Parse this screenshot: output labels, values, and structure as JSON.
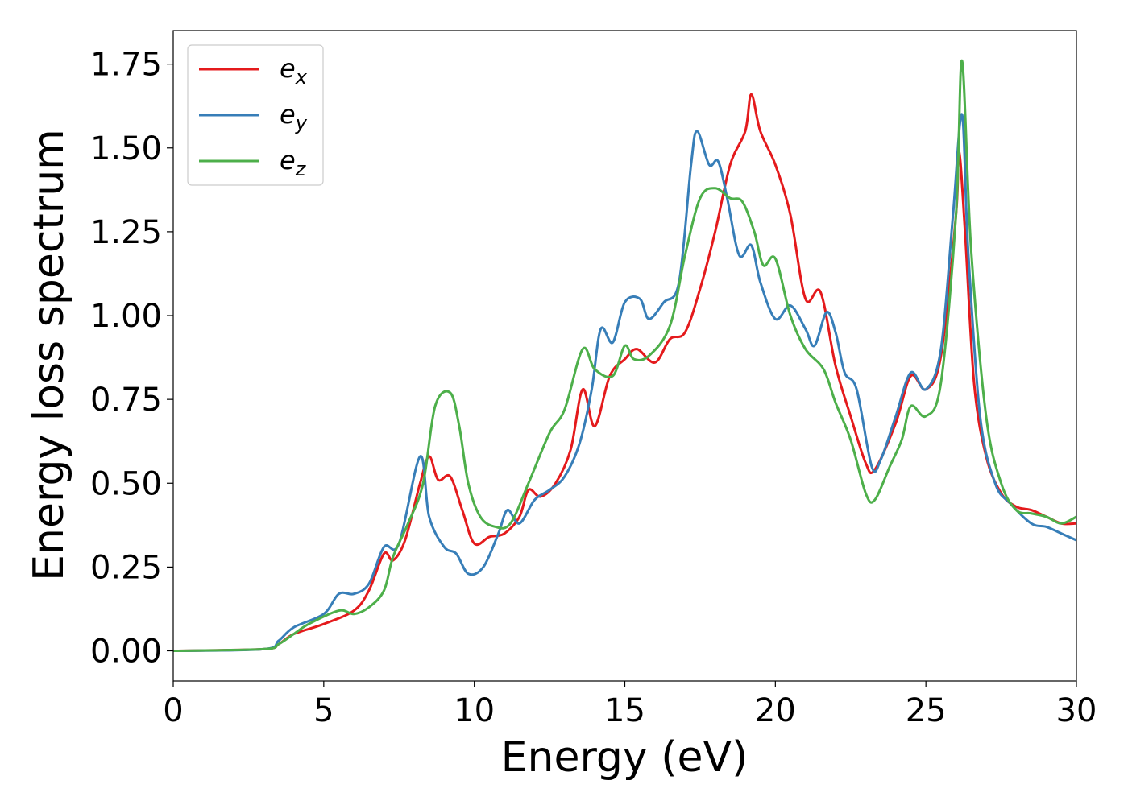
{
  "chart_data": {
    "type": "line",
    "title": "",
    "xlabel": "Energy (eV)",
    "ylabel": "Energy loss spectrum",
    "xlim": [
      0,
      30
    ],
    "ylim": [
      -0.09,
      1.85
    ],
    "xticks": [
      0,
      5,
      10,
      15,
      20,
      25,
      30
    ],
    "xtick_labels": [
      "0",
      "5",
      "10",
      "15",
      "20",
      "25",
      "30"
    ],
    "yticks": [
      0.0,
      0.25,
      0.5,
      0.75,
      1.0,
      1.25,
      1.5,
      1.75
    ],
    "ytick_labels": [
      "0.00",
      "0.25",
      "0.50",
      "0.75",
      "1.00",
      "1.25",
      "1.50",
      "1.75"
    ],
    "grid": false,
    "legend_position": "top-left",
    "series": [
      {
        "name": "e",
        "subscript": "x",
        "color": "#e41a1c",
        "points": [
          [
            0,
            0
          ],
          [
            3,
            0.005
          ],
          [
            3.5,
            0.02
          ],
          [
            4,
            0.05
          ],
          [
            5,
            0.08
          ],
          [
            6,
            0.12
          ],
          [
            6.5,
            0.18
          ],
          [
            7,
            0.29
          ],
          [
            7.3,
            0.27
          ],
          [
            7.7,
            0.33
          ],
          [
            8.2,
            0.5
          ],
          [
            8.5,
            0.58
          ],
          [
            8.8,
            0.51
          ],
          [
            9.2,
            0.52
          ],
          [
            9.6,
            0.42
          ],
          [
            10,
            0.32
          ],
          [
            10.5,
            0.34
          ],
          [
            11,
            0.35
          ],
          [
            11.5,
            0.4
          ],
          [
            11.8,
            0.48
          ],
          [
            12.2,
            0.46
          ],
          [
            12.7,
            0.5
          ],
          [
            13.2,
            0.6
          ],
          [
            13.6,
            0.78
          ],
          [
            14,
            0.67
          ],
          [
            14.5,
            0.82
          ],
          [
            15,
            0.87
          ],
          [
            15.4,
            0.9
          ],
          [
            16,
            0.86
          ],
          [
            16.5,
            0.93
          ],
          [
            17,
            0.95
          ],
          [
            17.5,
            1.08
          ],
          [
            18,
            1.25
          ],
          [
            18.5,
            1.45
          ],
          [
            19,
            1.55
          ],
          [
            19.2,
            1.66
          ],
          [
            19.5,
            1.55
          ],
          [
            20,
            1.45
          ],
          [
            20.5,
            1.3
          ],
          [
            21,
            1.05
          ],
          [
            21.5,
            1.07
          ],
          [
            22,
            0.85
          ],
          [
            22.5,
            0.7
          ],
          [
            23,
            0.56
          ],
          [
            23.3,
            0.54
          ],
          [
            24,
            0.68
          ],
          [
            24.5,
            0.82
          ],
          [
            25,
            0.78
          ],
          [
            25.5,
            0.88
          ],
          [
            26,
            1.3
          ],
          [
            26.1,
            1.49
          ],
          [
            26.3,
            1.25
          ],
          [
            26.6,
            0.8
          ],
          [
            27,
            0.58
          ],
          [
            27.5,
            0.47
          ],
          [
            28,
            0.43
          ],
          [
            28.5,
            0.42
          ],
          [
            29,
            0.4
          ],
          [
            29.5,
            0.38
          ],
          [
            30,
            0.38
          ]
        ]
      },
      {
        "name": "e",
        "subscript": "y",
        "color": "#377eb8",
        "points": [
          [
            0,
            0
          ],
          [
            3,
            0.005
          ],
          [
            3.5,
            0.03
          ],
          [
            4,
            0.07
          ],
          [
            5,
            0.11
          ],
          [
            5.5,
            0.17
          ],
          [
            6,
            0.17
          ],
          [
            6.5,
            0.2
          ],
          [
            7,
            0.31
          ],
          [
            7.5,
            0.32
          ],
          [
            8.2,
            0.58
          ],
          [
            8.5,
            0.4
          ],
          [
            9,
            0.31
          ],
          [
            9.4,
            0.29
          ],
          [
            9.8,
            0.23
          ],
          [
            10.3,
            0.25
          ],
          [
            10.8,
            0.35
          ],
          [
            11.1,
            0.42
          ],
          [
            11.5,
            0.38
          ],
          [
            12,
            0.45
          ],
          [
            12.5,
            0.48
          ],
          [
            13,
            0.52
          ],
          [
            13.5,
            0.62
          ],
          [
            13.9,
            0.78
          ],
          [
            14.2,
            0.96
          ],
          [
            14.6,
            0.92
          ],
          [
            15,
            1.04
          ],
          [
            15.5,
            1.05
          ],
          [
            15.8,
            0.99
          ],
          [
            16.3,
            1.04
          ],
          [
            16.8,
            1.1
          ],
          [
            17.2,
            1.45
          ],
          [
            17.4,
            1.55
          ],
          [
            17.8,
            1.45
          ],
          [
            18.1,
            1.46
          ],
          [
            18.4,
            1.35
          ],
          [
            18.8,
            1.18
          ],
          [
            19.2,
            1.21
          ],
          [
            19.5,
            1.1
          ],
          [
            20,
            0.99
          ],
          [
            20.5,
            1.03
          ],
          [
            21,
            0.96
          ],
          [
            21.3,
            0.91
          ],
          [
            21.7,
            1.01
          ],
          [
            22,
            0.95
          ],
          [
            22.3,
            0.83
          ],
          [
            22.7,
            0.78
          ],
          [
            23.2,
            0.55
          ],
          [
            23.5,
            0.57
          ],
          [
            24,
            0.7
          ],
          [
            24.5,
            0.83
          ],
          [
            25,
            0.78
          ],
          [
            25.5,
            0.9
          ],
          [
            25.9,
            1.3
          ],
          [
            26.2,
            1.6
          ],
          [
            26.4,
            1.2
          ],
          [
            26.8,
            0.7
          ],
          [
            27.3,
            0.5
          ],
          [
            27.8,
            0.44
          ],
          [
            28.5,
            0.38
          ],
          [
            29,
            0.37
          ],
          [
            29.5,
            0.35
          ],
          [
            30,
            0.33
          ]
        ]
      },
      {
        "name": "e",
        "subscript": "z",
        "color": "#4daf4a",
        "points": [
          [
            0,
            0
          ],
          [
            3,
            0.005
          ],
          [
            3.5,
            0.02
          ],
          [
            4,
            0.05
          ],
          [
            4.5,
            0.08
          ],
          [
            5.5,
            0.12
          ],
          [
            6,
            0.11
          ],
          [
            6.5,
            0.13
          ],
          [
            7,
            0.18
          ],
          [
            7.3,
            0.28
          ],
          [
            7.8,
            0.38
          ],
          [
            8.3,
            0.5
          ],
          [
            8.7,
            0.73
          ],
          [
            9.2,
            0.77
          ],
          [
            9.5,
            0.67
          ],
          [
            9.8,
            0.5
          ],
          [
            10.2,
            0.4
          ],
          [
            10.7,
            0.37
          ],
          [
            11.2,
            0.38
          ],
          [
            11.8,
            0.5
          ],
          [
            12.5,
            0.65
          ],
          [
            13,
            0.72
          ],
          [
            13.6,
            0.9
          ],
          [
            14,
            0.84
          ],
          [
            14.6,
            0.82
          ],
          [
            15,
            0.91
          ],
          [
            15.3,
            0.87
          ],
          [
            15.8,
            0.88
          ],
          [
            16.5,
            0.97
          ],
          [
            17,
            1.18
          ],
          [
            17.5,
            1.35
          ],
          [
            18,
            1.38
          ],
          [
            18.5,
            1.35
          ],
          [
            18.9,
            1.34
          ],
          [
            19.3,
            1.25
          ],
          [
            19.6,
            1.15
          ],
          [
            20,
            1.17
          ],
          [
            20.5,
            1.0
          ],
          [
            21,
            0.9
          ],
          [
            21.6,
            0.84
          ],
          [
            22,
            0.74
          ],
          [
            22.5,
            0.63
          ],
          [
            23,
            0.47
          ],
          [
            23.3,
            0.45
          ],
          [
            23.8,
            0.55
          ],
          [
            24.2,
            0.63
          ],
          [
            24.5,
            0.73
          ],
          [
            25,
            0.7
          ],
          [
            25.5,
            0.8
          ],
          [
            26,
            1.3
          ],
          [
            26.2,
            1.76
          ],
          [
            26.5,
            1.2
          ],
          [
            27,
            0.7
          ],
          [
            27.5,
            0.5
          ],
          [
            28,
            0.42
          ],
          [
            28.5,
            0.41
          ],
          [
            29,
            0.4
          ],
          [
            29.5,
            0.38
          ],
          [
            30,
            0.4
          ]
        ]
      }
    ]
  }
}
